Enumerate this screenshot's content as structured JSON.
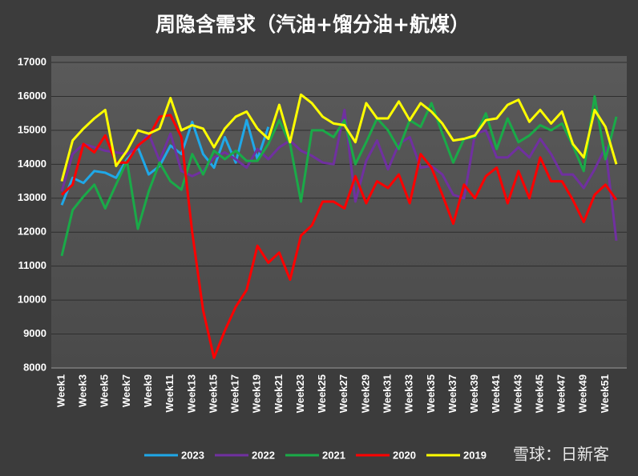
{
  "chart_data": {
    "type": "line",
    "title": "周隐含需求（汽油+馏分油+航煤）",
    "watermark": "雪球：日新客",
    "categories": [
      "Week1",
      null,
      "Week3",
      null,
      "Week5",
      null,
      "Week7",
      null,
      "Week9",
      null,
      "Week11",
      null,
      "Week13",
      null,
      "Week15",
      null,
      "Week17",
      null,
      "Week19",
      null,
      "Week21",
      null,
      "Week23",
      null,
      "Week25",
      null,
      "Week27",
      null,
      "Week29",
      null,
      "Week31",
      null,
      "Week33",
      null,
      "Week35",
      null,
      "Week37",
      null,
      "Week39",
      null,
      "Week41",
      null,
      "Week43",
      null,
      "Week45",
      null,
      "Week47",
      null,
      "Week49",
      null,
      "Week51",
      null
    ],
    "ylim": [
      8000,
      17000
    ],
    "yticks": [
      8000,
      9000,
      10000,
      11000,
      12000,
      13000,
      14000,
      15000,
      16000,
      17000
    ],
    "grid": true,
    "legend": "bottom",
    "series": [
      {
        "name": "2023",
        "color": "#1fa8e8",
        "values": [
          12800,
          13600,
          13450,
          13800,
          13750,
          13600,
          14150,
          14500,
          13700,
          13950,
          14550,
          14300,
          15250,
          14300,
          13900,
          14800,
          14050,
          15300,
          14150,
          15100,
          null,
          null,
          null,
          null,
          null,
          null,
          null,
          null,
          null,
          null,
          null,
          null,
          null,
          null,
          null,
          null,
          null,
          null,
          null,
          null,
          null,
          null,
          null,
          null,
          null,
          null,
          null,
          null,
          null,
          null,
          null,
          null
        ]
      },
      {
        "name": "2022",
        "color": "#7030a0",
        "values": [
          13200,
          14300,
          14600,
          14500,
          14400,
          14350,
          14300,
          14500,
          14900,
          14100,
          14900,
          13800,
          13650,
          13800,
          14200,
          14350,
          14150,
          13900,
          14450,
          14150,
          14500,
          14700,
          14400,
          14250,
          14050,
          14000,
          15600,
          12900,
          14100,
          14700,
          13850,
          14600,
          14800,
          13900,
          13950,
          13700,
          13100,
          13000,
          14900,
          15000,
          14200,
          14200,
          14500,
          14200,
          14750,
          14300,
          13700,
          13700,
          13300,
          13850,
          14500,
          11750
        ]
      },
      {
        "name": "2021",
        "color": "#1aaa48",
        "values": [
          11300,
          12650,
          13050,
          13400,
          12700,
          13400,
          14100,
          12100,
          13200,
          14050,
          13500,
          13250,
          14300,
          13700,
          14400,
          14150,
          14400,
          14100,
          14100,
          14600,
          15300,
          14600,
          12900,
          15000,
          15000,
          14800,
          15300,
          14000,
          14650,
          15350,
          15000,
          14450,
          15300,
          15100,
          15800,
          14900,
          14050,
          14750,
          14800,
          15500,
          14450,
          15350,
          14650,
          14850,
          15150,
          15000,
          15200,
          14550,
          13800,
          16000,
          14150,
          15400
        ]
      },
      {
        "name": "2020",
        "color": "#ff0000",
        "values": [
          13100,
          13400,
          14600,
          14350,
          14850,
          14050,
          14050,
          14550,
          14800,
          15400,
          15450,
          14800,
          12000,
          9700,
          8300,
          9100,
          9800,
          10300,
          11600,
          11100,
          11400,
          10600,
          11900,
          12200,
          12900,
          12900,
          12700,
          13650,
          12850,
          13500,
          13300,
          13700,
          12850,
          14300,
          13900,
          13100,
          12250,
          13400,
          13000,
          13650,
          13900,
          12850,
          13800,
          13000,
          14200,
          13500,
          13500,
          12950,
          12300,
          13100,
          13400,
          12950
        ]
      },
      {
        "name": "2019",
        "color": "#ffff00",
        "values": [
          13500,
          14700,
          15050,
          15350,
          15600,
          13950,
          14400,
          15000,
          14900,
          15050,
          15950,
          15000,
          15150,
          15050,
          14500,
          15050,
          15400,
          15550,
          15050,
          14750,
          15750,
          14650,
          16050,
          15800,
          15400,
          15200,
          15150,
          14650,
          15800,
          15350,
          15350,
          15850,
          15300,
          15800,
          15550,
          15200,
          14700,
          14750,
          14850,
          15300,
          15350,
          15750,
          15900,
          15250,
          15600,
          15200,
          15550,
          14600,
          14200,
          15600,
          15100,
          14000
        ]
      }
    ]
  }
}
